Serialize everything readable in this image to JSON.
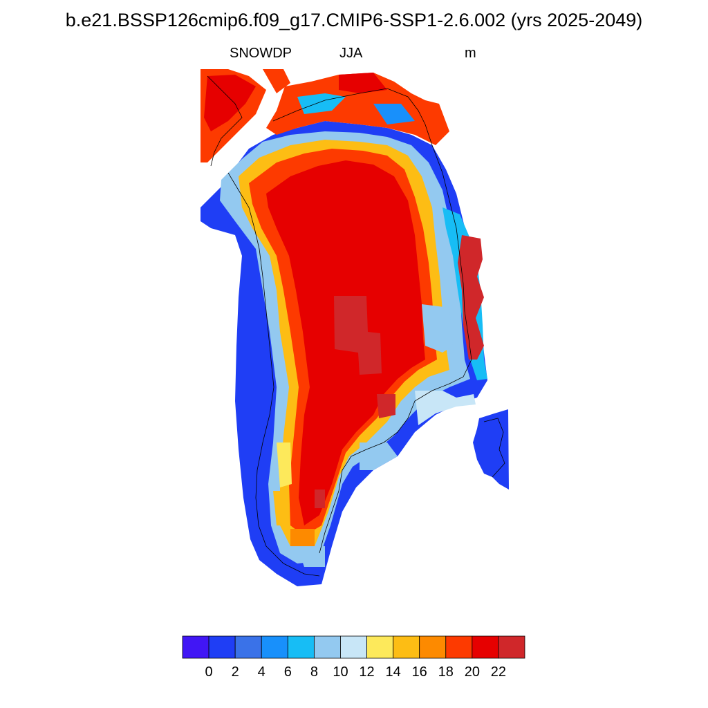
{
  "header": {
    "title": "b.e21.BSSP126cmip6.f09_g17.CMIP6-SSP1-2.6.002 (yrs 2025-2049)",
    "left_label": "SNOWDP",
    "center_label": "JJA",
    "right_label": "m"
  },
  "colorbar": {
    "colors": [
      "#4116f5",
      "#1f3ef5",
      "#3a72e8",
      "#1890fb",
      "#17bdf5",
      "#93c9f0",
      "#c8e6f7",
      "#fde95b",
      "#fdbd14",
      "#fd8a00",
      "#fd3a00",
      "#e60000",
      "#d0272a"
    ],
    "tick_labels": [
      "0",
      "2",
      "4",
      "6",
      "8",
      "10",
      "12",
      "14",
      "16",
      "18",
      "20",
      "22"
    ]
  }
}
